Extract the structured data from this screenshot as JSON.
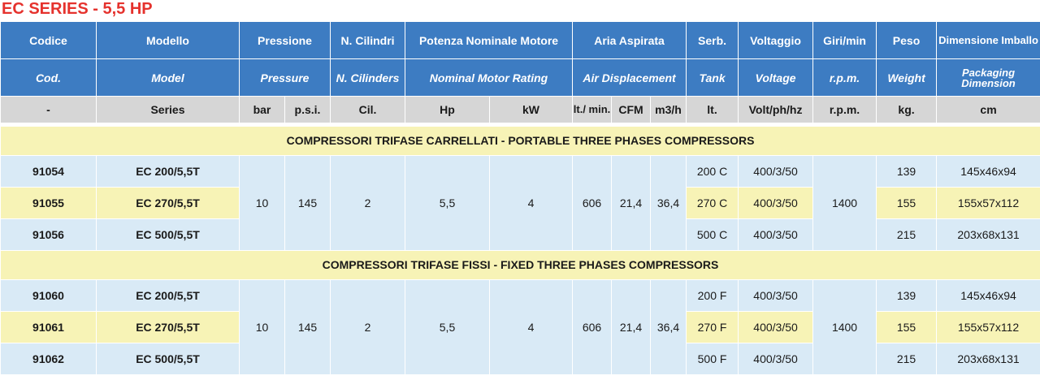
{
  "title": "EC SERIES - 5,5 HP",
  "headers": {
    "it": [
      "Codice",
      "Modello",
      "Pressione",
      "N. Cilindri",
      "Potenza Nominale Motore",
      "Aria Aspirata",
      "Serb.",
      "Voltaggio",
      "Giri/min",
      "Peso",
      "Dimensione Imballo"
    ],
    "en": [
      "Cod.",
      "Model",
      "Pressure",
      "N. Cilinders",
      "Nominal Motor Rating",
      "Air Displacement",
      "Tank",
      "Voltage",
      "r.p.m.",
      "Weight",
      "Packaging Dimension"
    ],
    "units": [
      "-",
      "Series",
      "bar",
      "p.s.i.",
      "Cil.",
      "Hp",
      "kW",
      "lt./ min.",
      "CFM",
      "m3/h",
      "lt.",
      "Volt/ph/hz",
      "r.p.m.",
      "kg.",
      "cm"
    ]
  },
  "sections": [
    {
      "title": "COMPRESSORI TRIFASE CARRELLATI - PORTABLE THREE PHASES COMPRESSORS",
      "shared": {
        "bar": "10",
        "psi": "145",
        "cil": "2",
        "hp": "5,5",
        "kw": "4",
        "lt_min": "606",
        "cfm": "21,4",
        "m3h": "36,4",
        "rpm": "1400"
      },
      "rows": [
        {
          "code": "91054",
          "model": "EC 200/5,5T",
          "tank": "200 C",
          "voltage": "400/3/50",
          "weight": "139",
          "dimension": "145x46x94"
        },
        {
          "code": "91055",
          "model": "EC 270/5,5T",
          "tank": "270 C",
          "voltage": "400/3/50",
          "weight": "155",
          "dimension": "155x57x112"
        },
        {
          "code": "91056",
          "model": "EC 500/5,5T",
          "tank": "500 C",
          "voltage": "400/3/50",
          "weight": "215",
          "dimension": "203x68x131"
        }
      ]
    },
    {
      "title": "COMPRESSORI TRIFASE FISSI - FIXED THREE PHASES COMPRESSORS",
      "shared": {
        "bar": "10",
        "psi": "145",
        "cil": "2",
        "hp": "5,5",
        "kw": "4",
        "lt_min": "606",
        "cfm": "21,4",
        "m3h": "36,4",
        "rpm": "1400"
      },
      "rows": [
        {
          "code": "91060",
          "model": "EC 200/5,5T",
          "tank": "200 F",
          "voltage": "400/3/50",
          "weight": "139",
          "dimension": "145x46x94"
        },
        {
          "code": "91061",
          "model": "EC 270/5,5T",
          "tank": "270 F",
          "voltage": "400/3/50",
          "weight": "155",
          "dimension": "155x57x112"
        },
        {
          "code": "91062",
          "model": "EC 500/5,5T",
          "tank": "500 F",
          "voltage": "400/3/50",
          "weight": "215",
          "dimension": "203x68x131"
        }
      ]
    }
  ],
  "colors": {
    "title_red": "#e5322d",
    "header_blue": "#3d7cc2",
    "units_gray": "#d6d6d6",
    "row_blue": "#d9eaf6",
    "row_yellow": "#f7f3b6"
  }
}
